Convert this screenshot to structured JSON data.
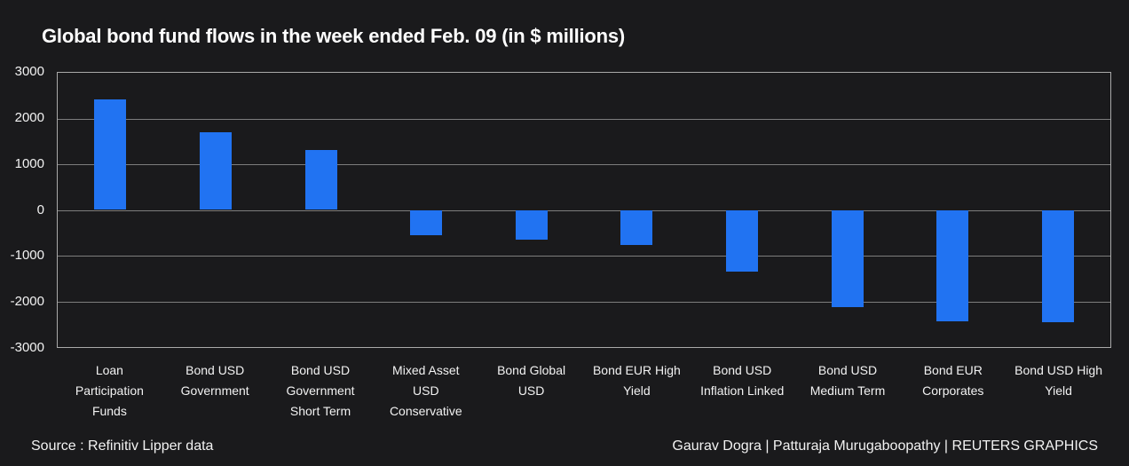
{
  "title": "Global bond fund flows in the week ended Feb. 09 (in $ millions)",
  "footer": {
    "source": "Source : Refinitiv Lipper data",
    "credits": "Gaurav Dogra | Patturaja Murugaboopathy | REUTERS GRAPHICS"
  },
  "colors": {
    "background": "#1a1a1c",
    "bar": "#2173f2",
    "gridline": "#7d7d7d",
    "plot_border": "#a9a9a9",
    "text": "#f2f2f2",
    "title_text": "#ffffff"
  },
  "chart_data": {
    "type": "bar",
    "title": "Global bond fund flows in the week ended Feb. 09 (in $ millions)",
    "categories": [
      "Loan Participation Funds",
      "Bond USD Government",
      "Bond USD Government Short Term",
      "Mixed Asset USD Conservative",
      "Bond Global USD",
      "Bond EUR High Yield",
      "Bond USD Inflation Linked",
      "Bond USD Medium Term",
      "Bond EUR Corporates",
      "Bond USD High Yield"
    ],
    "xtick_lines": [
      [
        "Loan",
        "Participation",
        "Funds"
      ],
      [
        "Bond USD",
        "Government"
      ],
      [
        "Bond USD",
        "Government",
        "Short Term"
      ],
      [
        "Mixed Asset",
        "USD",
        "Conservative"
      ],
      [
        "Bond Global",
        "USD"
      ],
      [
        "Bond EUR High",
        "Yield"
      ],
      [
        "Bond USD",
        "Inflation Linked"
      ],
      [
        "Bond USD",
        "Medium Term"
      ],
      [
        "Bond EUR",
        "Corporates"
      ],
      [
        "Bond USD High",
        "Yield"
      ]
    ],
    "values": [
      2420,
      1700,
      1310,
      -560,
      -660,
      -760,
      -1350,
      -2120,
      -2430,
      -2460
    ],
    "xlabel": "",
    "ylabel": "",
    "ylim": [
      -3000,
      3000
    ],
    "yticks": [
      3000,
      2000,
      1000,
      0,
      -1000,
      -2000,
      -3000
    ],
    "grid": true,
    "legend": false,
    "bar_color": "#2173f2"
  }
}
